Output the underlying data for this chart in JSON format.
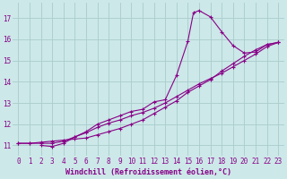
{
  "background_color": "#cce8e8",
  "grid_color": "#aacccc",
  "line_color": "#880088",
  "marker_style": "+",
  "marker_size": 3,
  "line_width": 0.8,
  "xlabel": "Windchill (Refroidissement éolien,°C)",
  "xlabel_fontsize": 6,
  "tick_label_color": "#880088",
  "tick_fontsize": 5.5,
  "xlim": [
    -0.5,
    23.5
  ],
  "ylim": [
    10.5,
    17.7
  ],
  "yticks": [
    11,
    12,
    13,
    14,
    15,
    16,
    17
  ],
  "xticks": [
    0,
    1,
    2,
    3,
    4,
    5,
    6,
    7,
    8,
    9,
    10,
    11,
    12,
    13,
    14,
    15,
    16,
    17,
    18,
    19,
    20,
    21,
    22,
    23
  ],
  "series1_x": [
    0,
    1,
    2,
    3,
    4,
    5,
    6,
    7,
    8,
    9,
    10,
    11,
    12,
    13,
    14,
    15,
    16,
    17,
    18,
    19,
    20,
    21,
    22,
    23
  ],
  "series1_y": [
    11.1,
    11.1,
    11.15,
    11.2,
    11.25,
    11.3,
    11.35,
    11.5,
    11.65,
    11.8,
    12.0,
    12.2,
    12.5,
    12.8,
    13.1,
    13.5,
    13.8,
    14.1,
    14.5,
    14.85,
    15.2,
    15.5,
    15.75,
    15.85
  ],
  "series2_x": [
    0,
    1,
    2,
    3,
    4,
    5,
    6,
    7,
    8,
    9,
    10,
    11,
    12,
    13,
    14,
    15,
    16,
    17,
    18,
    19,
    20,
    21,
    22,
    23
  ],
  "series2_y": [
    11.1,
    11.1,
    11.1,
    11.1,
    11.2,
    11.4,
    11.6,
    11.85,
    12.05,
    12.2,
    12.4,
    12.55,
    12.75,
    13.0,
    13.3,
    13.6,
    13.9,
    14.15,
    14.4,
    14.7,
    15.0,
    15.3,
    15.65,
    15.85
  ],
  "series3_x": [
    2,
    3,
    4,
    5,
    6,
    7,
    8,
    9,
    10,
    11,
    12,
    13,
    14,
    15,
    15.5,
    16,
    17,
    18,
    19,
    20,
    21,
    22,
    23
  ],
  "series3_y": [
    11.0,
    10.95,
    11.1,
    11.4,
    11.65,
    12.0,
    12.2,
    12.4,
    12.6,
    12.7,
    13.05,
    13.15,
    14.3,
    15.9,
    17.25,
    17.35,
    17.05,
    16.35,
    15.7,
    15.35,
    15.4,
    15.75,
    15.85
  ]
}
